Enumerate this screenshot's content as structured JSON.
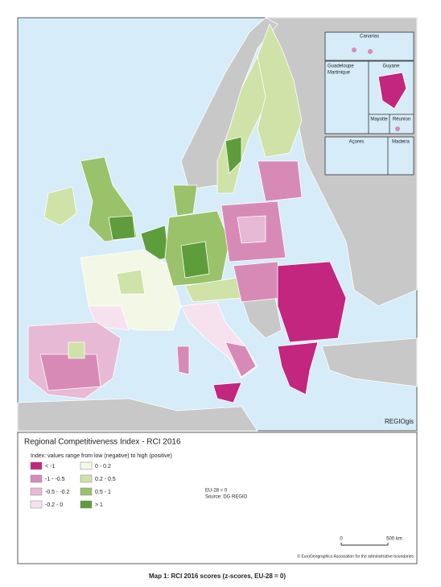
{
  "insets": {
    "canarias": "Canarias",
    "guadeloupe": "Guadeloupe",
    "martinique": "Martinique",
    "guyane": "Guyane",
    "mayotte": "Mayotte",
    "reunion": "Réunion",
    "acores": "Açores",
    "madeira": "Madeira"
  },
  "logo": "REGIOgis",
  "legend": {
    "title": "Regional Competitiveness Index - RCI 2016",
    "subtitle": "Index: values range from low (negative) to high (positive)",
    "classes": [
      {
        "label": "< -1",
        "color": "#c2267e"
      },
      {
        "label": "-1 - -0.5",
        "color": "#d88ab7"
      },
      {
        "label": "-0.5 - -0.2",
        "color": "#e8b9d4"
      },
      {
        "label": "-0.2 - 0",
        "color": "#f6e2ee"
      },
      {
        "label": "0 - 0.2",
        "color": "#f3f8e6"
      },
      {
        "label": "0.2 - 0.5",
        "color": "#cfe2a8"
      },
      {
        "label": "0.5 - 1",
        "color": "#9ac26a"
      },
      {
        "label": "> 1",
        "color": "#5e9d3b"
      }
    ],
    "note": "EU-28 = 0",
    "source": "Source: DG REGIO",
    "copyright": "© EuroGeographics Association for the administrative boundaries"
  },
  "scale_bar": {
    "start": "0",
    "end": "500 km"
  },
  "caption": "Map 1: RCI 2016 scores (z-scores, EU-28 = 0)"
}
